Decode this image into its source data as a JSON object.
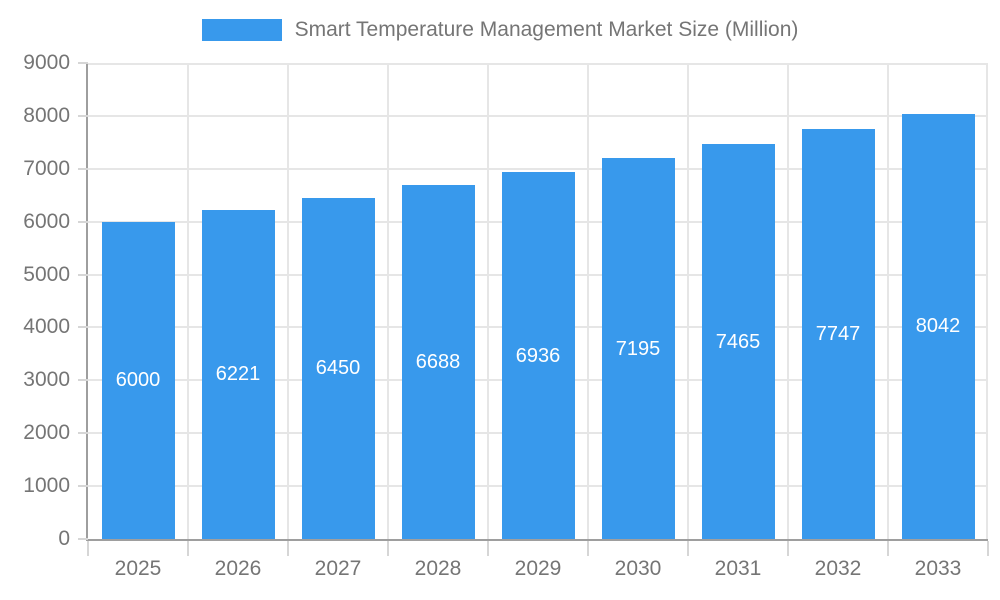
{
  "legend": {
    "label": "Smart Temperature Management Market Size (Million)"
  },
  "chart_data": {
    "type": "bar",
    "title": "",
    "categories": [
      "2025",
      "2026",
      "2027",
      "2028",
      "2029",
      "2030",
      "2031",
      "2032",
      "2033"
    ],
    "values": [
      6000,
      6221,
      6450,
      6688,
      6936,
      7195,
      7465,
      7747,
      8042
    ],
    "series_name": "Smart Temperature Management Market Size (Million)",
    "xlabel": "",
    "ylabel": "",
    "ylim": [
      0,
      9000
    ],
    "ytick_step": 1000,
    "y_tick_labels": [
      "0",
      "1000",
      "2000",
      "3000",
      "4000",
      "5000",
      "6000",
      "7000",
      "8000",
      "9000"
    ],
    "grid": true,
    "legend_position": "top",
    "value_label_position": "inside-middle",
    "colors": {
      "bar": "#3899ec",
      "value_label": "#ffffff",
      "axis_text": "#757575",
      "legend_text": "#757575",
      "gridline": "#e6e6e6",
      "tick": "#d6d6d6",
      "axis_line": "#9e9e9e",
      "background": "#ffffff"
    }
  }
}
